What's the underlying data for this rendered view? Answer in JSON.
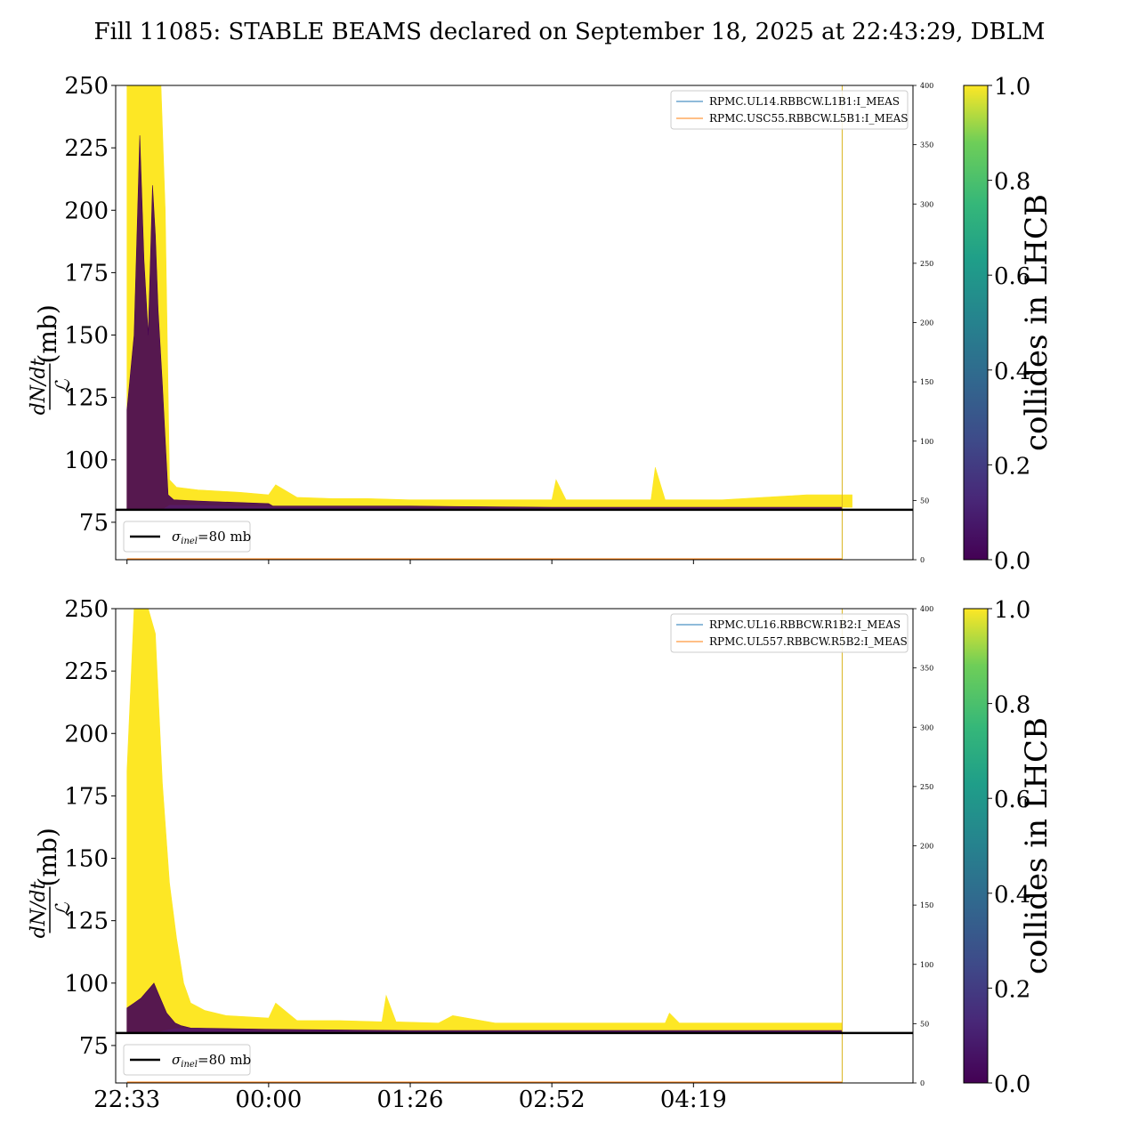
{
  "title": "Fill 11085: STABLE BEAMS declared on September 18, 2025 at 22:43:29, DBLM",
  "colors": {
    "collides": "#fde725",
    "non_collides": "#440154",
    "blm_line1": "#1f77b4",
    "blm_line2": "#ff7f0e",
    "reference_line": "#000000"
  },
  "chart_data": [
    {
      "type": "area",
      "panel": "top",
      "ylabel": {
        "numerator": "dN/dt",
        "denominator": "ℒ",
        "unit": " (mb)"
      },
      "ylim": [
        60,
        250
      ],
      "yticks": [
        75,
        100,
        125,
        150,
        175,
        200,
        225,
        250
      ],
      "secondary_ylim": [
        0,
        400
      ],
      "secondary_yticks": [
        0,
        50,
        100,
        150,
        200,
        250,
        300,
        350,
        400
      ],
      "x_tick_labels": [],
      "reference_line": {
        "value": 80,
        "label_sym": "σ",
        "label_sub": "inel",
        "label_rest": "=80 mb"
      },
      "legend": [
        "RPMC.UL14.RBBCW.L1B1:I_MEAS",
        "RPMC.USC55.RBBCW.L5B1:I_MEAS"
      ],
      "colorbar": {
        "label": "collides in LHCB",
        "ticks": [
          "0.0",
          "0.2",
          "0.4",
          "0.6",
          "0.8",
          "1.0"
        ]
      },
      "series": [
        {
          "name": "collides",
          "color": "#fde725",
          "x": [
            0.0,
            0.1,
            0.14,
            0.18,
            0.21,
            0.24,
            0.27,
            0.3,
            0.35,
            0.5,
            0.8,
            1.0,
            1.05,
            1.2,
            1.45,
            1.7,
            2.0,
            2.4,
            2.8,
            3.0,
            3.03,
            3.1,
            3.5,
            3.7,
            3.73,
            3.8,
            4.2,
            4.8,
            5.05,
            5.12
          ],
          "upper": [
            250,
            250,
            250,
            250,
            250,
            250,
            200,
            92,
            89,
            88,
            87,
            86,
            90,
            85,
            84.5,
            84.5,
            84,
            84,
            84,
            84,
            92,
            84,
            84,
            84,
            97,
            84,
            84,
            86,
            86,
            86
          ],
          "lower": [
            80,
            80,
            80,
            80,
            80,
            80,
            81,
            82,
            82,
            82,
            81.5,
            81.5,
            81,
            81,
            81,
            81,
            81,
            81,
            81,
            81,
            81,
            81,
            81,
            81,
            81,
            81,
            81,
            81,
            81,
            81
          ]
        },
        {
          "name": "non-colliding",
          "color": "#440154",
          "x": [
            0.0,
            0.05,
            0.09,
            0.12,
            0.15,
            0.18,
            0.2,
            0.22,
            0.25,
            0.29,
            0.33,
            0.5,
            1.0,
            1.03,
            1.5,
            2.0,
            3.0,
            4.0,
            5.05
          ],
          "upper": [
            120,
            150,
            230,
            180,
            150,
            210,
            190,
            160,
            130,
            86,
            84,
            83.5,
            82.5,
            81.5,
            81.5,
            81.5,
            81,
            81,
            81
          ],
          "lower": [
            80,
            80,
            80,
            80,
            80,
            80,
            80,
            80,
            80,
            80,
            80,
            80,
            80,
            80,
            80,
            80,
            80,
            80,
            80
          ]
        }
      ]
    },
    {
      "type": "area",
      "panel": "bottom",
      "ylabel": {
        "numerator": "dN/dt",
        "denominator": "ℒ",
        "unit": " (mb)"
      },
      "ylim": [
        60,
        250
      ],
      "yticks": [
        75,
        100,
        125,
        150,
        175,
        200,
        225,
        250
      ],
      "secondary_ylim": [
        0,
        400
      ],
      "secondary_yticks": [
        0,
        50,
        100,
        150,
        200,
        250,
        300,
        350,
        400
      ],
      "x_tick_labels": [
        "22:33",
        "00:00",
        "01:26",
        "02:52",
        "04:19"
      ],
      "reference_line": {
        "value": 80,
        "label_sym": "σ",
        "label_sub": "inel",
        "label_rest": "=80 mb"
      },
      "legend": [
        "RPMC.UL16.RBBCW.R1B2:I_MEAS",
        "RPMC.UL557.RBBCW.R5B2:I_MEAS"
      ],
      "colorbar": {
        "label": "collides in LHCB",
        "ticks": [
          "0.0",
          "0.2",
          "0.4",
          "0.6",
          "0.8",
          "1.0"
        ]
      },
      "series": [
        {
          "name": "collides",
          "color": "#fde725",
          "x": [
            0.0,
            0.05,
            0.1,
            0.15,
            0.2,
            0.25,
            0.3,
            0.35,
            0.4,
            0.45,
            0.55,
            0.7,
            1.0,
            1.05,
            1.2,
            1.5,
            1.8,
            1.83,
            1.9,
            2.2,
            2.3,
            2.6,
            3.0,
            3.5,
            3.8,
            3.83,
            3.9,
            4.4,
            4.8,
            5.05
          ],
          "upper": [
            185,
            250,
            250,
            250,
            240,
            180,
            140,
            118,
            100,
            92,
            89,
            87,
            86,
            92,
            85,
            85,
            84.5,
            95,
            84.5,
            84,
            87,
            84,
            84,
            84,
            84,
            88,
            84,
            84,
            84,
            84
          ],
          "lower": [
            80,
            80,
            80,
            80,
            80,
            81,
            81.5,
            82,
            82,
            82,
            82,
            81.5,
            81,
            81,
            81,
            81,
            81,
            81,
            81,
            81,
            81,
            81,
            81,
            81,
            81,
            81,
            81,
            81,
            81,
            81
          ]
        },
        {
          "name": "non-colliding",
          "color": "#440154",
          "x": [
            0.0,
            0.05,
            0.1,
            0.13,
            0.16,
            0.19,
            0.22,
            0.25,
            0.28,
            0.31,
            0.34,
            0.38,
            0.45,
            1.0,
            2.0,
            3.0,
            4.0,
            5.05
          ],
          "upper": [
            90,
            92,
            94,
            96,
            98,
            100,
            96,
            92,
            88,
            86,
            84,
            83,
            82,
            81.5,
            81,
            81,
            81,
            81
          ],
          "lower": [
            80,
            80,
            80,
            80,
            80,
            80,
            80,
            80,
            80,
            80,
            80,
            80,
            80,
            80,
            80,
            80,
            80,
            80
          ]
        }
      ]
    }
  ]
}
